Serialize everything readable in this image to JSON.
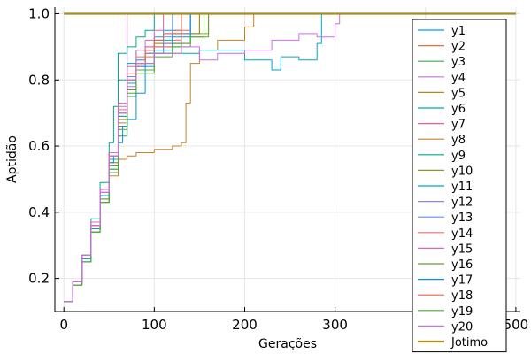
{
  "chart_data": {
    "type": "line",
    "title": "",
    "xlabel": "Gerações",
    "ylabel": "Aptidão",
    "xlim": [
      -10,
      505
    ],
    "ylim": [
      0.1,
      1.02
    ],
    "xticks": [
      0,
      100,
      200,
      300,
      400,
      500
    ],
    "xtick_labels": [
      "0",
      "100",
      "200",
      "300",
      "400",
      "500"
    ],
    "yticks": [
      0.2,
      0.4,
      0.6,
      0.8,
      1.0
    ],
    "ytick_labels": [
      "0.2",
      "0.4",
      "0.6",
      "0.8",
      "1.0"
    ],
    "grid": true,
    "legend_position": "right",
    "series": [
      {
        "name": "y1",
        "color": "#009AFA",
        "points": [
          [
            0,
            0.13
          ],
          [
            10,
            0.19
          ],
          [
            20,
            0.26
          ],
          [
            30,
            0.35
          ],
          [
            40,
            0.43
          ],
          [
            50,
            0.53
          ],
          [
            60,
            0.66
          ],
          [
            70,
            0.8
          ],
          [
            80,
            0.86
          ],
          [
            90,
            0.9
          ],
          [
            100,
            0.93
          ],
          [
            110,
            0.95
          ],
          [
            130,
            1.0
          ],
          [
            500,
            1.0
          ]
        ]
      },
      {
        "name": "y2",
        "color": "#E36F47",
        "points": [
          [
            0,
            0.13
          ],
          [
            10,
            0.19
          ],
          [
            20,
            0.27
          ],
          [
            30,
            0.36
          ],
          [
            40,
            0.45
          ],
          [
            50,
            0.55
          ],
          [
            60,
            0.67
          ],
          [
            70,
            0.79
          ],
          [
            80,
            0.84
          ],
          [
            90,
            0.89
          ],
          [
            100,
            0.91
          ],
          [
            120,
            0.95
          ],
          [
            140,
            1.0
          ],
          [
            500,
            1.0
          ]
        ]
      },
      {
        "name": "y3",
        "color": "#3EA44E",
        "points": [
          [
            0,
            0.13
          ],
          [
            10,
            0.18
          ],
          [
            20,
            0.25
          ],
          [
            30,
            0.34
          ],
          [
            40,
            0.43
          ],
          [
            50,
            0.52
          ],
          [
            60,
            0.63
          ],
          [
            70,
            0.75
          ],
          [
            80,
            0.84
          ],
          [
            90,
            0.88
          ],
          [
            100,
            0.9
          ],
          [
            130,
            0.94
          ],
          [
            150,
            1.0
          ],
          [
            500,
            1.0
          ]
        ]
      },
      {
        "name": "y4",
        "color": "#C371D2",
        "points": [
          [
            0,
            0.13
          ],
          [
            10,
            0.19
          ],
          [
            20,
            0.27
          ],
          [
            30,
            0.37
          ],
          [
            40,
            0.47
          ],
          [
            50,
            0.58
          ],
          [
            60,
            0.72
          ],
          [
            70,
            1.0
          ],
          [
            500,
            1.0
          ]
        ]
      },
      {
        "name": "y5",
        "color": "#AC8D18",
        "points": [
          [
            0,
            0.13
          ],
          [
            10,
            0.19
          ],
          [
            20,
            0.26
          ],
          [
            30,
            0.35
          ],
          [
            40,
            0.45
          ],
          [
            50,
            0.56
          ],
          [
            60,
            0.69
          ],
          [
            70,
            0.8
          ],
          [
            80,
            0.85
          ],
          [
            90,
            0.89
          ],
          [
            100,
            0.91
          ],
          [
            130,
            0.94
          ],
          [
            150,
            1.0
          ],
          [
            500,
            1.0
          ]
        ]
      },
      {
        "name": "y6",
        "color": "#00A9AD",
        "points": [
          [
            0,
            0.13
          ],
          [
            10,
            0.19
          ],
          [
            20,
            0.27
          ],
          [
            30,
            0.37
          ],
          [
            40,
            0.47
          ],
          [
            50,
            0.58
          ],
          [
            60,
            0.8
          ],
          [
            70,
            0.85
          ],
          [
            80,
            0.89
          ],
          [
            100,
            0.92
          ],
          [
            120,
            0.94
          ],
          [
            140,
            1.0
          ],
          [
            500,
            1.0
          ]
        ]
      },
      {
        "name": "y7",
        "color": "#ED5E93",
        "points": [
          [
            0,
            0.13
          ],
          [
            10,
            0.19
          ],
          [
            20,
            0.27
          ],
          [
            30,
            0.36
          ],
          [
            40,
            0.46
          ],
          [
            50,
            0.57
          ],
          [
            60,
            0.7
          ],
          [
            70,
            0.81
          ],
          [
            80,
            0.85
          ],
          [
            90,
            0.9
          ],
          [
            110,
            0.94
          ],
          [
            130,
            1.0
          ],
          [
            500,
            1.0
          ]
        ]
      },
      {
        "name": "y8",
        "color": "#C68225",
        "points": [
          [
            0,
            0.13
          ],
          [
            10,
            0.18
          ],
          [
            20,
            0.25
          ],
          [
            30,
            0.34
          ],
          [
            40,
            0.43
          ],
          [
            50,
            0.51
          ],
          [
            60,
            0.56
          ],
          [
            70,
            0.57
          ],
          [
            80,
            0.58
          ],
          [
            100,
            0.59
          ],
          [
            120,
            0.6
          ],
          [
            130,
            0.61
          ],
          [
            135,
            0.73
          ],
          [
            140,
            0.85
          ],
          [
            150,
            0.89
          ],
          [
            170,
            0.92
          ],
          [
            200,
            0.96
          ],
          [
            210,
            1.0
          ],
          [
            500,
            1.0
          ]
        ]
      },
      {
        "name": "y9",
        "color": "#00A98D",
        "points": [
          [
            0,
            0.13
          ],
          [
            10,
            0.19
          ],
          [
            20,
            0.27
          ],
          [
            30,
            0.38
          ],
          [
            40,
            0.49
          ],
          [
            50,
            0.61
          ],
          [
            55,
            0.72
          ],
          [
            60,
            0.88
          ],
          [
            70,
            0.9
          ],
          [
            80,
            0.93
          ],
          [
            90,
            0.95
          ],
          [
            100,
            1.0
          ],
          [
            500,
            1.0
          ]
        ]
      },
      {
        "name": "y10",
        "color": "#8E971E",
        "points": [
          [
            0,
            0.13
          ],
          [
            10,
            0.19
          ],
          [
            20,
            0.26
          ],
          [
            30,
            0.35
          ],
          [
            40,
            0.45
          ],
          [
            50,
            0.55
          ],
          [
            60,
            0.68
          ],
          [
            70,
            0.79
          ],
          [
            80,
            0.85
          ],
          [
            90,
            0.88
          ],
          [
            110,
            0.91
          ],
          [
            140,
            0.94
          ],
          [
            160,
            1.0
          ],
          [
            500,
            1.0
          ]
        ]
      },
      {
        "name": "y11",
        "color": "#00A8C5",
        "points": [
          [
            0,
            0.13
          ],
          [
            10,
            0.19
          ],
          [
            20,
            0.26
          ],
          [
            30,
            0.35
          ],
          [
            40,
            0.45
          ],
          [
            50,
            0.56
          ],
          [
            60,
            0.69
          ],
          [
            70,
            0.79
          ],
          [
            80,
            0.84
          ],
          [
            100,
            0.88
          ],
          [
            150,
            0.89
          ],
          [
            200,
            0.86
          ],
          [
            230,
            0.83
          ],
          [
            240,
            0.87
          ],
          [
            260,
            0.86
          ],
          [
            280,
            0.91
          ],
          [
            285,
            1.0
          ],
          [
            500,
            1.0
          ]
        ]
      },
      {
        "name": "y12",
        "color": "#9B7FE8",
        "points": [
          [
            0,
            0.13
          ],
          [
            10,
            0.18
          ],
          [
            20,
            0.26
          ],
          [
            30,
            0.35
          ],
          [
            40,
            0.44
          ],
          [
            50,
            0.54
          ],
          [
            60,
            0.66
          ],
          [
            70,
            0.78
          ],
          [
            80,
            0.84
          ],
          [
            90,
            0.88
          ],
          [
            110,
            0.91
          ],
          [
            130,
            0.94
          ],
          [
            140,
            1.0
          ],
          [
            500,
            1.0
          ]
        ]
      },
      {
        "name": "y13",
        "color": "#618DF6",
        "points": [
          [
            0,
            0.13
          ],
          [
            10,
            0.19
          ],
          [
            20,
            0.26
          ],
          [
            30,
            0.36
          ],
          [
            40,
            0.46
          ],
          [
            50,
            0.57
          ],
          [
            60,
            0.7
          ],
          [
            70,
            0.81
          ],
          [
            80,
            0.86
          ],
          [
            90,
            0.89
          ],
          [
            110,
            0.93
          ],
          [
            120,
            1.0
          ],
          [
            500,
            1.0
          ]
        ]
      },
      {
        "name": "y14",
        "color": "#F16C6B",
        "points": [
          [
            0,
            0.13
          ],
          [
            10,
            0.19
          ],
          [
            20,
            0.27
          ],
          [
            30,
            0.37
          ],
          [
            40,
            0.47
          ],
          [
            50,
            0.58
          ],
          [
            60,
            0.71
          ],
          [
            70,
            0.82
          ],
          [
            80,
            0.87
          ],
          [
            100,
            0.9
          ],
          [
            120,
            0.92
          ],
          [
            130,
            1.0
          ],
          [
            500,
            1.0
          ]
        ]
      },
      {
        "name": "y15",
        "color": "#DD64B5",
        "points": [
          [
            0,
            0.13
          ],
          [
            10,
            0.19
          ],
          [
            20,
            0.27
          ],
          [
            30,
            0.37
          ],
          [
            40,
            0.47
          ],
          [
            50,
            0.58
          ],
          [
            60,
            0.73
          ],
          [
            70,
            0.84
          ],
          [
            80,
            0.89
          ],
          [
            90,
            0.92
          ],
          [
            100,
            0.95
          ],
          [
            110,
            1.0
          ],
          [
            500,
            1.0
          ]
        ]
      },
      {
        "name": "y16",
        "color": "#6A9B34",
        "points": [
          [
            0,
            0.13
          ],
          [
            10,
            0.18
          ],
          [
            20,
            0.25
          ],
          [
            30,
            0.34
          ],
          [
            40,
            0.44
          ],
          [
            50,
            0.54
          ],
          [
            60,
            0.66
          ],
          [
            70,
            0.77
          ],
          [
            80,
            0.83
          ],
          [
            100,
            0.88
          ],
          [
            120,
            0.91
          ],
          [
            140,
            0.93
          ],
          [
            160,
            1.0
          ],
          [
            500,
            1.0
          ]
        ]
      },
      {
        "name": "y17",
        "color": "#0096E0",
        "points": [
          [
            0,
            0.13
          ],
          [
            10,
            0.19
          ],
          [
            20,
            0.26
          ],
          [
            30,
            0.35
          ],
          [
            40,
            0.45
          ],
          [
            50,
            0.55
          ],
          [
            55,
            0.57
          ],
          [
            60,
            0.61
          ],
          [
            65,
            0.66
          ],
          [
            70,
            0.68
          ],
          [
            80,
            0.76
          ],
          [
            90,
            0.85
          ],
          [
            100,
            0.89
          ],
          [
            120,
            0.93
          ],
          [
            140,
            1.0
          ],
          [
            500,
            1.0
          ]
        ]
      },
      {
        "name": "y18",
        "color": "#F06147",
        "points": [
          [
            0,
            0.13
          ],
          [
            10,
            0.19
          ],
          [
            20,
            0.27
          ],
          [
            30,
            0.36
          ],
          [
            40,
            0.46
          ],
          [
            50,
            0.57
          ],
          [
            60,
            0.7
          ],
          [
            70,
            0.8
          ],
          [
            80,
            0.85
          ],
          [
            90,
            0.89
          ],
          [
            100,
            0.92
          ],
          [
            110,
            0.94
          ],
          [
            130,
            1.0
          ],
          [
            500,
            1.0
          ]
        ]
      },
      {
        "name": "y19",
        "color": "#48AA2F",
        "points": [
          [
            0,
            0.13
          ],
          [
            10,
            0.18
          ],
          [
            20,
            0.25
          ],
          [
            30,
            0.34
          ],
          [
            40,
            0.43
          ],
          [
            50,
            0.53
          ],
          [
            60,
            0.65
          ],
          [
            70,
            0.76
          ],
          [
            80,
            0.82
          ],
          [
            100,
            0.87
          ],
          [
            120,
            0.9
          ],
          [
            140,
            0.93
          ],
          [
            155,
            1.0
          ],
          [
            500,
            1.0
          ]
        ]
      },
      {
        "name": "y20",
        "color": "#CE6CEC",
        "points": [
          [
            0,
            0.13
          ],
          [
            10,
            0.19
          ],
          [
            20,
            0.27
          ],
          [
            30,
            0.36
          ],
          [
            40,
            0.46
          ],
          [
            50,
            0.57
          ],
          [
            60,
            0.7
          ],
          [
            70,
            0.8
          ],
          [
            80,
            0.85
          ],
          [
            100,
            0.88
          ],
          [
            130,
            0.9
          ],
          [
            150,
            0.86
          ],
          [
            170,
            0.88
          ],
          [
            200,
            0.89
          ],
          [
            230,
            0.92
          ],
          [
            260,
            0.94
          ],
          [
            280,
            0.93
          ],
          [
            300,
            0.97
          ],
          [
            305,
            1.0
          ],
          [
            500,
            1.0
          ]
        ]
      },
      {
        "name": "Jotimo",
        "color": "#AD8A1D",
        "width": 2.2,
        "points": [
          [
            0,
            1.0
          ],
          [
            500,
            1.0
          ]
        ]
      }
    ]
  }
}
